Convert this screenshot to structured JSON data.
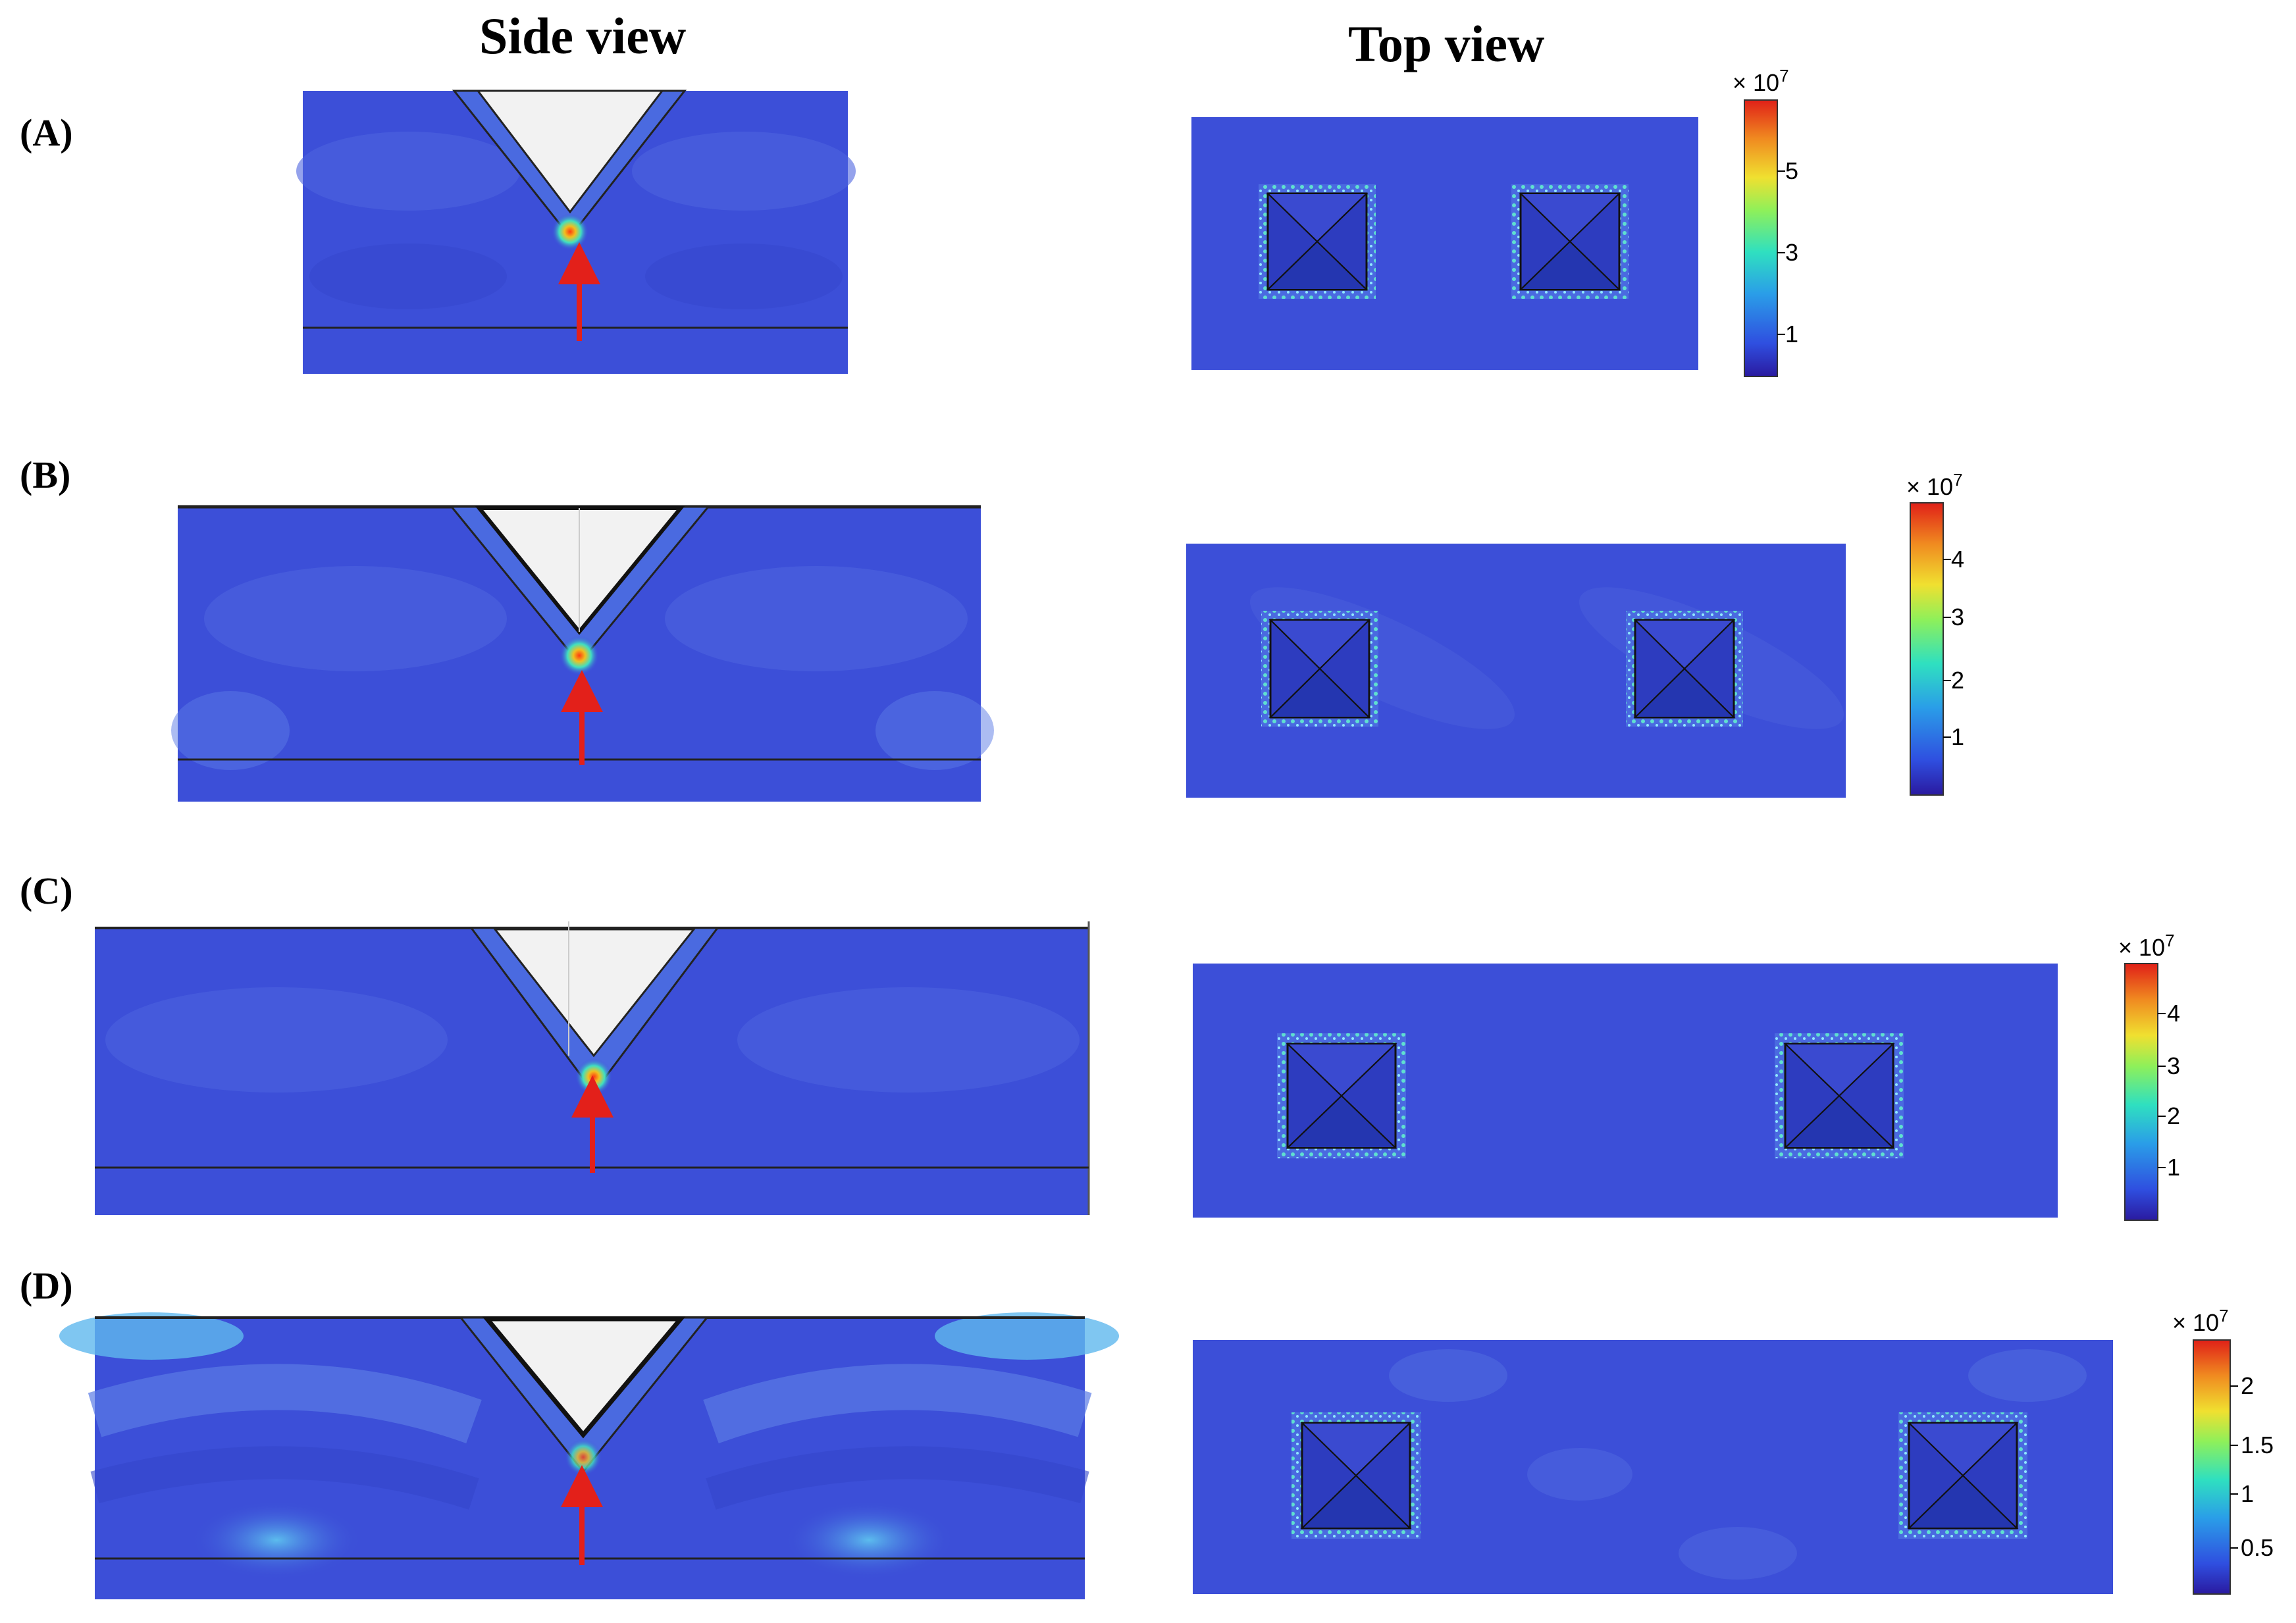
{
  "headers": {
    "side": "Side view",
    "top": "Top view"
  },
  "rows": [
    {
      "label": "(A)",
      "colorbar": {
        "exponent_base": "× 10",
        "exponent_power": "7",
        "ticks": [
          "5",
          "3",
          "1"
        ]
      }
    },
    {
      "label": "(B)",
      "colorbar": {
        "exponent_base": "× 10",
        "exponent_power": "7",
        "ticks": [
          "4",
          "3",
          "2",
          "1"
        ]
      }
    },
    {
      "label": "(C)",
      "colorbar": {
        "exponent_base": "× 10",
        "exponent_power": "7",
        "ticks": [
          "4",
          "3",
          "2",
          "1"
        ]
      }
    },
    {
      "label": "(D)",
      "colorbar": {
        "exponent_base": "× 10",
        "exponent_power": "7",
        "ticks": [
          "2",
          "1.5",
          "1",
          "0.5"
        ]
      }
    }
  ],
  "colors": {
    "field": "#3c4fd8",
    "field_light": "#5a7ae6",
    "field_dark": "#2d3cbf",
    "cavity": "#f2f2f2",
    "arrow": "#e3201a",
    "colormap": [
      "#2a1aa0",
      "#2f4fe0",
      "#2a9ee8",
      "#2fe0c0",
      "#8ef05a",
      "#f0e030",
      "#f08a20",
      "#e02018"
    ]
  }
}
